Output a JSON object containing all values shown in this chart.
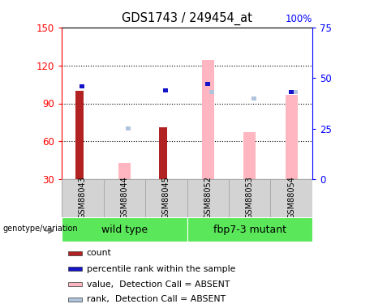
{
  "title": "GDS1743 / 249454_at",
  "samples": [
    "GSM88043",
    "GSM88044",
    "GSM88045",
    "GSM88052",
    "GSM88053",
    "GSM88054"
  ],
  "ylim_left": [
    30,
    150
  ],
  "ylim_right": [
    0,
    75
  ],
  "yticks_left": [
    30,
    60,
    90,
    120,
    150
  ],
  "yticks_right": [
    0,
    25,
    50,
    75
  ],
  "ytick_labels_right": [
    "0",
    "25",
    "50",
    "75"
  ],
  "count_values": [
    100,
    0,
    71,
    0,
    0,
    0
  ],
  "rank_pct": [
    46,
    0,
    44,
    47,
    0,
    43
  ],
  "absent_value": [
    0,
    43,
    0,
    124,
    67,
    97
  ],
  "absent_rank_pct": [
    0,
    25,
    0,
    43,
    40,
    43
  ],
  "colors": {
    "count": "#b22222",
    "rank": "#1414c8",
    "absent_value": "#ffb6c1",
    "absent_rank": "#b0c4de",
    "grid": "#000000"
  },
  "legend": [
    {
      "label": "count",
      "color": "#b22222"
    },
    {
      "label": "percentile rank within the sample",
      "color": "#1414c8"
    },
    {
      "label": "value,  Detection Call = ABSENT",
      "color": "#ffb6c1"
    },
    {
      "label": "rank,  Detection Call = ABSENT",
      "color": "#b0c4de"
    }
  ],
  "group_wt": "wild type",
  "group_mut": "fbp7-3 mutant",
  "geno_label": "genotype/variation"
}
